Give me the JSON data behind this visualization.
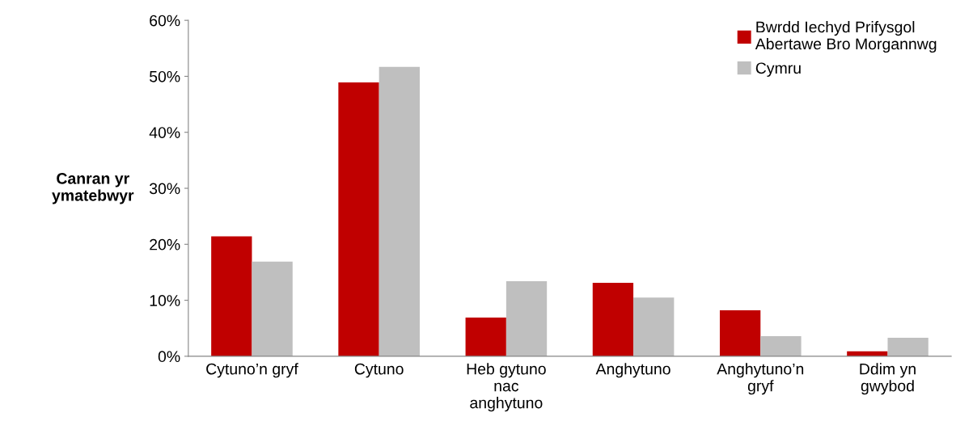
{
  "chart_data": {
    "type": "bar",
    "ylabel": "Canran yr\nymatebwyr",
    "categories": [
      "Cytuno’n gryf",
      "Cytuno",
      "Heb gytuno\nnac\nanghytuno",
      "Anghytuno",
      "Anghytuno’n\ngryf",
      "Ddim yn\ngwybod"
    ],
    "series": [
      {
        "name": "Bwrdd Iechyd Prifysgol\nAbertawe Bro Morgannwg",
        "color": "#c00000",
        "values": [
          21.4,
          48.9,
          6.9,
          13.1,
          8.2,
          0.9
        ]
      },
      {
        "name": "Cymru",
        "color": "#bfbfbf",
        "values": [
          16.9,
          51.7,
          13.4,
          10.5,
          3.6,
          3.3
        ]
      }
    ],
    "ylim": [
      0,
      60
    ],
    "yticks": [
      {
        "value": 0,
        "label": "0%"
      },
      {
        "value": 10,
        "label": "10%"
      },
      {
        "value": 20,
        "label": "20%"
      },
      {
        "value": 30,
        "label": "30%"
      },
      {
        "value": 40,
        "label": "40%"
      },
      {
        "value": 50,
        "label": "50%"
      },
      {
        "value": 60,
        "label": "60%"
      }
    ],
    "grid": false,
    "legend": "top right"
  }
}
